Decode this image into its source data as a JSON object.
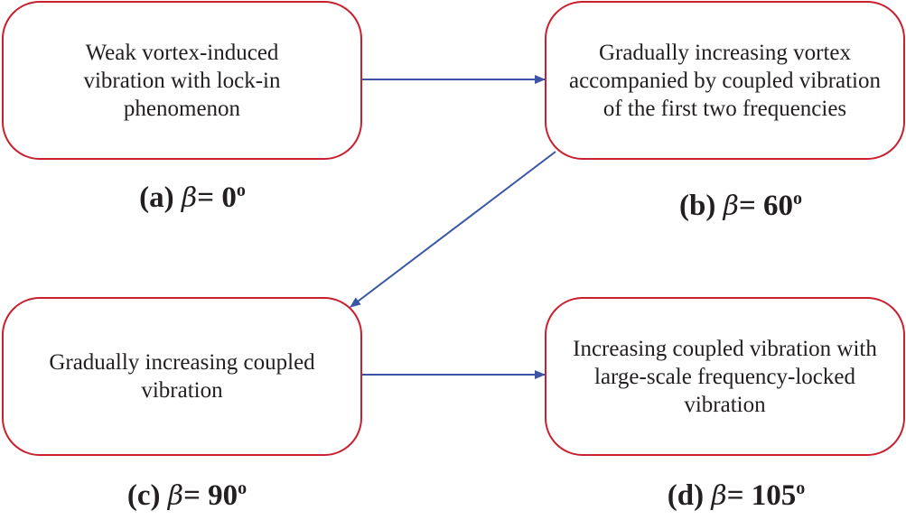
{
  "colors": {
    "box_border": "#c8202e",
    "arrow": "#3b55a5"
  },
  "nodes": [
    {
      "id": "a",
      "text": "Weak vortex-induced vibration with lock-in phenomenon",
      "tag": "(a)",
      "symbol": "β",
      "eq": "=",
      "angle": "0",
      "unit": "o"
    },
    {
      "id": "b",
      "text": "Gradually increasing vortex accompanied by coupled vibration of the first two frequencies",
      "tag": "(b)",
      "symbol": "β",
      "eq": "=",
      "angle": "60",
      "unit": "o"
    },
    {
      "id": "c",
      "text": "Gradually increasing coupled vibration",
      "tag": "(c)",
      "symbol": "β",
      "eq": "=",
      "angle": "90",
      "unit": "o"
    },
    {
      "id": "d",
      "text": "Increasing coupled vibration with large-scale frequency-locked vibration",
      "tag": "(d)",
      "symbol": "β",
      "eq": "=",
      "angle": "105",
      "unit": "o"
    }
  ],
  "edges": [
    {
      "from": "a",
      "to": "b"
    },
    {
      "from": "b",
      "to": "c"
    },
    {
      "from": "c",
      "to": "d"
    }
  ]
}
